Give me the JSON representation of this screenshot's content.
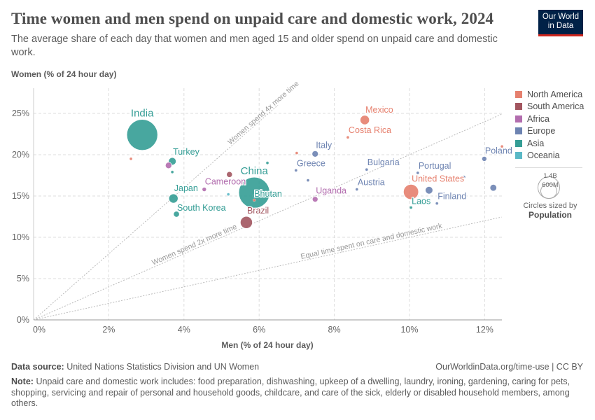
{
  "title": "Time women and men spend on unpaid care and domestic work, 2024",
  "subtitle": "The average share of each day that women and men aged 15 and older spend on unpaid care and domestic work.",
  "logo": "Our World in Data",
  "footer": {
    "source_label": "Data source:",
    "source": "United Nations Statistics Division and UN Women",
    "url": "OurWorldinData.org/time-use | CC BY",
    "note_label": "Note:",
    "note": "Unpaid care and domestic work includes: food preparation, dishwashing, upkeep of a dwelling, laundry, ironing, gardening, caring for pets, shopping, servicing and repair of personal and household goods, childcare, and care of the sick, elderly or disabled household members, among others."
  },
  "size_legend": {
    "big": "1.4B",
    "small": "600M",
    "caption": "Circles sized by",
    "variable": "Population"
  },
  "chart_data": {
    "type": "scatter",
    "xlabel": "Men (% of 24 hour day)",
    "ylabel": "Women (% of 24 hour day)",
    "xlim": [
      0,
      12.45
    ],
    "ylim": [
      0,
      27
    ],
    "xticks": [
      "0%",
      "2%",
      "4%",
      "6%",
      "8%",
      "10%",
      "12%"
    ],
    "yticks": [
      "0%",
      "5%",
      "10%",
      "15%",
      "20%",
      "25%"
    ],
    "grid": true,
    "legend_position": "right",
    "regions": [
      {
        "name": "North America",
        "color": "#e6806e"
      },
      {
        "name": "South America",
        "color": "#a2555f"
      },
      {
        "name": "Africa",
        "color": "#b26dae"
      },
      {
        "name": "Europe",
        "color": "#6d83b1"
      },
      {
        "name": "Asia",
        "color": "#349d95"
      },
      {
        "name": "Oceania",
        "color": "#5ab8c6"
      }
    ],
    "reference_lines": [
      {
        "ratio": 4,
        "label": "Women spend 4x more time"
      },
      {
        "ratio": 2,
        "label": "Women spend 2x more time"
      },
      {
        "ratio": 1,
        "label": "Equal time spent on care and domestic work"
      }
    ],
    "points": [
      {
        "label": "India",
        "region": "Asia",
        "x": 2.89,
        "y": 22.4,
        "pop": 1400
      },
      {
        "label": "Turkey",
        "region": "Asia",
        "x": 3.69,
        "y": 19.2,
        "pop": 85
      },
      {
        "label": "",
        "region": "Africa",
        "x": 3.59,
        "y": 18.7,
        "pop": 60
      },
      {
        "label": "",
        "region": "Asia",
        "x": 3.69,
        "y": 17.9,
        "pop": 5
      },
      {
        "label": "",
        "region": "North America",
        "x": 2.59,
        "y": 19.5,
        "pop": 5
      },
      {
        "label": "Japan",
        "region": "Asia",
        "x": 3.72,
        "y": 14.7,
        "pop": 125
      },
      {
        "label": "South Korea",
        "region": "Asia",
        "x": 3.8,
        "y": 12.8,
        "pop": 52
      },
      {
        "label": "Cameroon",
        "region": "Africa",
        "x": 4.54,
        "y": 15.8,
        "pop": 28
      },
      {
        "label": "",
        "region": "South America",
        "x": 5.21,
        "y": 17.6,
        "pop": 50
      },
      {
        "label": "",
        "region": "Oceania",
        "x": 5.18,
        "y": 15.2,
        "pop": 5
      },
      {
        "label": "China",
        "region": "Asia",
        "x": 5.87,
        "y": 15.4,
        "pop": 1410
      },
      {
        "label": "Bhutan",
        "region": "Asia",
        "x": 5.87,
        "y": 15.0,
        "pop": 1
      },
      {
        "label": "",
        "region": "North America",
        "x": 5.87,
        "y": 14.5,
        "pop": 3
      },
      {
        "label": "Brazil",
        "region": "South America",
        "x": 5.66,
        "y": 11.8,
        "pop": 215
      },
      {
        "label": "",
        "region": "Asia",
        "x": 6.22,
        "y": 19.0,
        "pop": 5
      },
      {
        "label": "",
        "region": "North America",
        "x": 7.0,
        "y": 20.2,
        "pop": 4
      },
      {
        "label": "Greece",
        "region": "Europe",
        "x": 6.98,
        "y": 18.1,
        "pop": 10
      },
      {
        "label": "Italy",
        "region": "Europe",
        "x": 7.49,
        "y": 20.1,
        "pop": 59
      },
      {
        "label": "",
        "region": "Europe",
        "x": 7.3,
        "y": 16.9,
        "pop": 6
      },
      {
        "label": "Uganda",
        "region": "Africa",
        "x": 7.49,
        "y": 14.6,
        "pop": 47
      },
      {
        "label": "Mexico",
        "region": "North America",
        "x": 8.81,
        "y": 24.2,
        "pop": 128
      },
      {
        "label": "Costa Rica",
        "region": "North America",
        "x": 8.36,
        "y": 22.1,
        "pop": 5
      },
      {
        "label": "Bulgaria",
        "region": "Europe",
        "x": 8.86,
        "y": 18.2,
        "pop": 7
      },
      {
        "label": "Austria",
        "region": "Europe",
        "x": 8.6,
        "y": 15.8,
        "pop": 9
      },
      {
        "label": "United States",
        "region": "North America",
        "x": 10.04,
        "y": 15.5,
        "pop": 335
      },
      {
        "label": "",
        "region": "Europe",
        "x": 10.52,
        "y": 15.7,
        "pop": 84
      },
      {
        "label": "Laos",
        "region": "Asia",
        "x": 10.04,
        "y": 13.6,
        "pop": 7
      },
      {
        "label": "Finland",
        "region": "Europe",
        "x": 10.73,
        "y": 14.1,
        "pop": 5.5
      },
      {
        "label": "Portugal",
        "region": "Europe",
        "x": 10.22,
        "y": 17.8,
        "pop": 10
      },
      {
        "label": "",
        "region": "Oceania",
        "x": 11.15,
        "y": 17.2,
        "pop": 5
      },
      {
        "label": "",
        "region": "Europe",
        "x": 11.45,
        "y": 17.3,
        "pop": 6
      },
      {
        "label": "Poland",
        "region": "Europe",
        "x": 11.99,
        "y": 19.5,
        "pop": 37
      },
      {
        "label": "",
        "region": "Europe",
        "x": 12.23,
        "y": 16.0,
        "pop": 67
      },
      {
        "label": "",
        "region": "North America",
        "x": 12.46,
        "y": 21.0,
        "pop": 4
      }
    ]
  }
}
